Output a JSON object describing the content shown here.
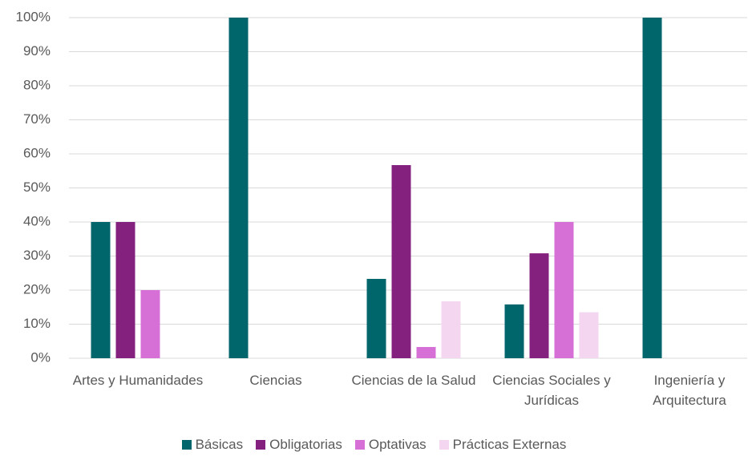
{
  "chart_data": {
    "type": "bar",
    "categories": [
      "Artes y Humanidades",
      "Ciencias",
      "Ciencias de la Salud",
      "Ciencias Sociales y Jurídicas",
      "Ingeniería y Arquitectura"
    ],
    "series": [
      {
        "name": "Básicas",
        "color": "#00666b",
        "values": [
          40,
          100,
          23.3,
          15.8,
          100
        ]
      },
      {
        "name": "Obligatorias",
        "color": "#84207e",
        "values": [
          40,
          0,
          56.7,
          30.8,
          0
        ]
      },
      {
        "name": "Optativas",
        "color": "#d670d6",
        "values": [
          20,
          0,
          3.3,
          40,
          0
        ]
      },
      {
        "name": "Prácticas Externas",
        "color": "#f5d6f0",
        "values": [
          0,
          0,
          16.7,
          13.5,
          0
        ]
      }
    ],
    "ylim": [
      0,
      100
    ],
    "yticks": [
      {
        "value": 0,
        "label": "0%"
      },
      {
        "value": 10,
        "label": "10%"
      },
      {
        "value": 20,
        "label": "20%"
      },
      {
        "value": 30,
        "label": "30%"
      },
      {
        "value": 40,
        "label": "40%"
      },
      {
        "value": 50,
        "label": "50%"
      },
      {
        "value": 60,
        "label": "60%"
      },
      {
        "value": 70,
        "label": "70%"
      },
      {
        "value": 80,
        "label": "80%"
      },
      {
        "value": 90,
        "label": "90%"
      },
      {
        "value": 100,
        "label": "100%"
      }
    ],
    "grid": true
  }
}
